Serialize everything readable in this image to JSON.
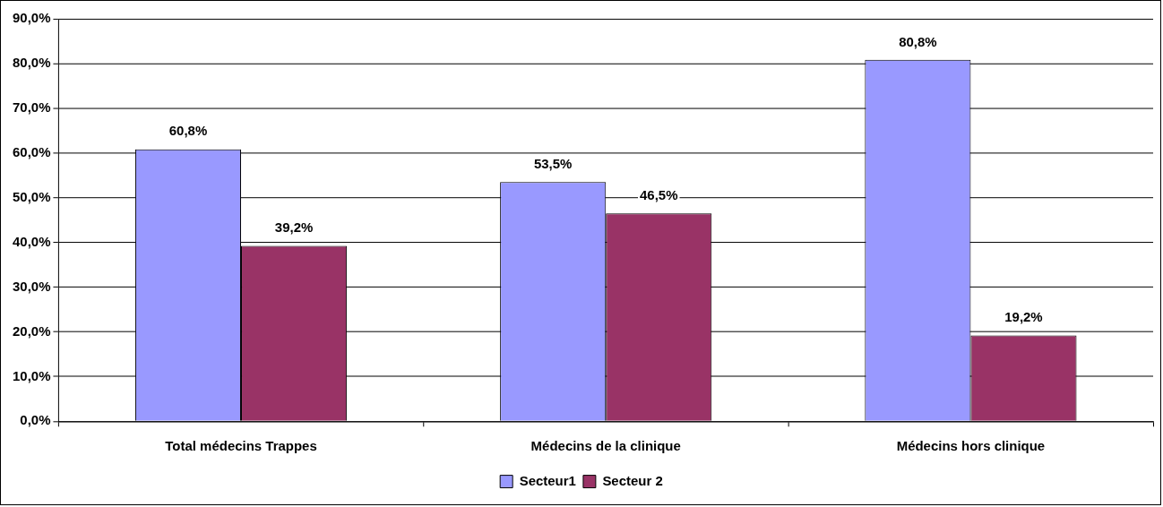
{
  "chart_data": {
    "type": "bar",
    "categories": [
      "Total médecins Trappes",
      "Médecins de la clinique",
      "Médecins hors clinique"
    ],
    "series": [
      {
        "name": "Secteur1",
        "color": "#9999ff",
        "values": [
          60.8,
          53.5,
          80.8
        ],
        "value_labels": [
          "60,8%",
          "53,5%",
          "80,8%"
        ]
      },
      {
        "name": "Secteur 2",
        "color": "#993366",
        "values": [
          39.2,
          46.5,
          19.2
        ],
        "value_labels": [
          "39,2%",
          "46,5%",
          "19,2%"
        ]
      }
    ],
    "ylim": [
      0,
      90
    ],
    "yticks": [
      {
        "value": 0,
        "label": "0,0%"
      },
      {
        "value": 10,
        "label": "10,0%"
      },
      {
        "value": 20,
        "label": "20,0%"
      },
      {
        "value": 30,
        "label": "30,0%"
      },
      {
        "value": 40,
        "label": "40,0%"
      },
      {
        "value": 50,
        "label": "50,0%"
      },
      {
        "value": 60,
        "label": "60,0%"
      },
      {
        "value": 70,
        "label": "70,0%"
      },
      {
        "value": 80,
        "label": "80,0%"
      },
      {
        "value": 90,
        "label": "90,0%"
      }
    ],
    "grid": "y",
    "legend": "bottom"
  }
}
